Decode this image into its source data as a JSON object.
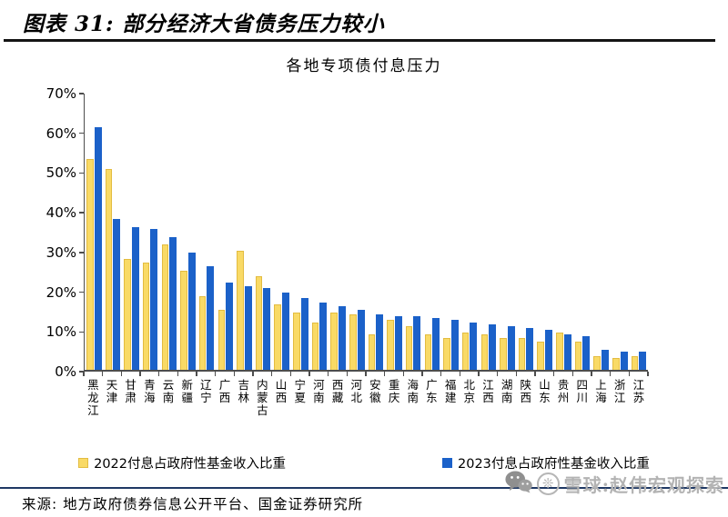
{
  "header": {
    "title": "图表 31: 部分经济大省债务压力较小"
  },
  "chart_data": {
    "type": "bar",
    "title": "各地专项债付息压力",
    "categories": [
      "黑龙江",
      "天津",
      "甘肃",
      "青海",
      "云南",
      "新疆",
      "辽宁",
      "广西",
      "吉林",
      "内蒙古",
      "山西",
      "宁夏",
      "河南",
      "西藏",
      "河北",
      "安徽",
      "重庆",
      "海南",
      "广东",
      "福建",
      "北京",
      "江西",
      "湖南",
      "陕西",
      "山东",
      "贵州",
      "四川",
      "上海",
      "浙江",
      "江苏"
    ],
    "series": [
      {
        "name": "2022付息占政府性基金收入比重",
        "color": "#F9DA66",
        "values": [
          53,
          50.5,
          28,
          27,
          31.5,
          25,
          18.5,
          15,
          30,
          23.5,
          16.5,
          14.5,
          12,
          14.5,
          14,
          9,
          12.5,
          11,
          9,
          8,
          9.5,
          9,
          8,
          8,
          7,
          9.5,
          7,
          3.5,
          3,
          3.5
        ]
      },
      {
        "name": "2023付息占政府性基金收入比重",
        "color": "#1B61C9",
        "values": [
          61,
          38,
          36,
          35.5,
          33.5,
          29.5,
          26,
          22,
          21,
          20.5,
          19.5,
          18,
          17,
          16,
          15,
          14,
          13.5,
          13.5,
          13,
          12.5,
          12,
          11.5,
          11,
          10.5,
          10,
          9,
          8.5,
          5,
          4.5,
          4.5
        ]
      }
    ],
    "ylim": [
      0,
      70
    ],
    "ytick_step": 10,
    "ytick_suffix": "%",
    "grid": false,
    "legend_position": "bottom"
  },
  "footer": {
    "source": "来源: 地方政府债券信息公开平台、国金证券研究所"
  },
  "watermark": {
    "wechat_icon": "wechat-icon",
    "xueqiu_icon": "xueqiu-snowflake-icon",
    "xueqiu_glyph": "❊",
    "text": "雪球:赵伟宏观探索"
  }
}
